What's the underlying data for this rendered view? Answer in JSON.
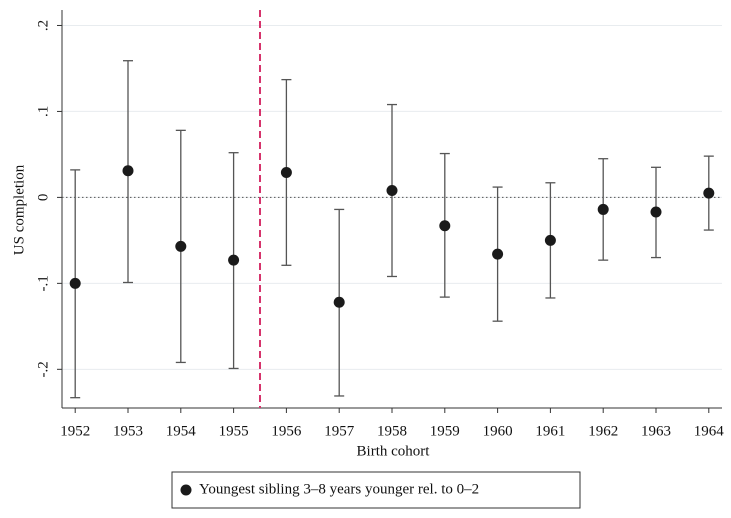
{
  "chart_data": {
    "type": "errorbar",
    "x_label": "Birth cohort",
    "y_label": "US completion",
    "x": [
      1952,
      1953,
      1954,
      1955,
      1956,
      1957,
      1958,
      1959,
      1960,
      1961,
      1962,
      1963,
      1964
    ],
    "series": [
      {
        "name": "Youngest sibling 3–8 years younger rel. to 0–2",
        "color": "#1a1a1a",
        "values": [
          -0.1,
          0.031,
          -0.057,
          -0.073,
          0.029,
          -0.122,
          0.008,
          -0.033,
          -0.066,
          -0.05,
          -0.014,
          -0.017,
          0.005
        ],
        "lower": [
          -0.233,
          -0.099,
          -0.192,
          -0.199,
          -0.079,
          -0.231,
          -0.092,
          -0.116,
          -0.144,
          -0.117,
          -0.073,
          -0.07,
          -0.038
        ],
        "upper": [
          0.032,
          0.159,
          0.078,
          0.052,
          0.137,
          -0.014,
          0.108,
          0.051,
          0.012,
          0.017,
          0.045,
          0.035,
          0.048
        ]
      }
    ],
    "xlim": [
      1951.75,
      1964.25
    ],
    "ylim": [
      -0.245,
      0.218
    ],
    "xticks": [
      1952,
      1953,
      1954,
      1955,
      1956,
      1957,
      1958,
      1959,
      1960,
      1961,
      1962,
      1963,
      1964
    ],
    "yticks": [
      {
        "value": -0.2,
        "label": "-.2"
      },
      {
        "value": -0.1,
        "label": "-.1"
      },
      {
        "value": 0,
        "label": "0"
      },
      {
        "value": 0.1,
        "label": ".1"
      },
      {
        "value": 0.2,
        "label": ".2"
      }
    ],
    "grid": true,
    "reference_x": 1955.5,
    "reference_y": 0,
    "reference_x_color": "#d6336c"
  }
}
